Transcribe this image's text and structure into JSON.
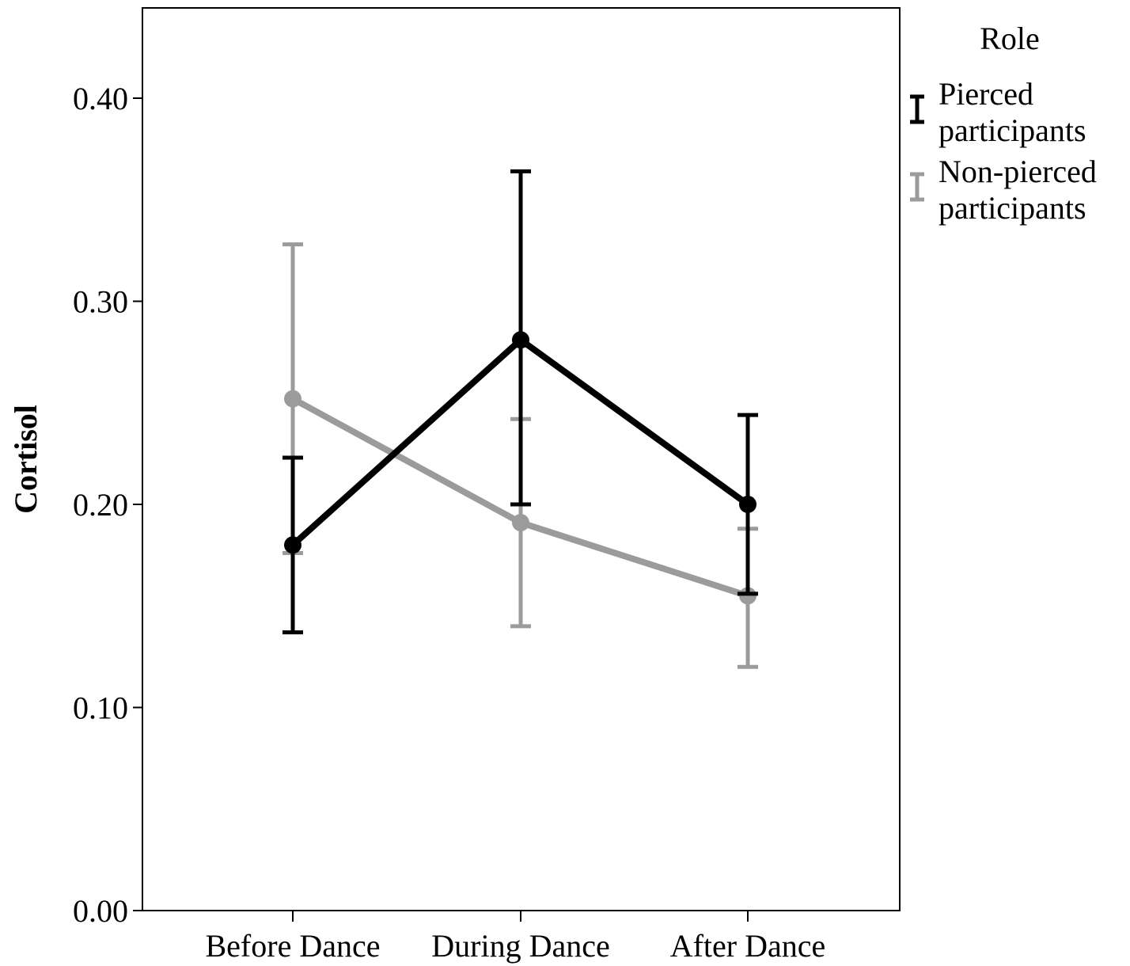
{
  "chart_data": {
    "type": "line",
    "title": "",
    "xlabel": "",
    "ylabel": "Cortisol",
    "categories": [
      "Before Dance",
      "During Dance",
      "After Dance"
    ],
    "ylim": [
      0.0,
      0.44
    ],
    "yticks": [
      "0.00",
      "0.10",
      "0.20",
      "0.30",
      "0.40"
    ],
    "ytick_values": [
      0.0,
      0.1,
      0.2,
      0.3,
      0.4
    ],
    "grid": false,
    "legend": {
      "title": "Role",
      "position": "right"
    },
    "series": [
      {
        "name": "Pierced participants",
        "name_lines": [
          "Pierced",
          "participants"
        ],
        "color": "#000000",
        "values": [
          0.18,
          0.281,
          0.2
        ],
        "err_low": [
          0.137,
          0.2,
          0.156
        ],
        "err_high": [
          0.223,
          0.364,
          0.244
        ]
      },
      {
        "name": "Non-pierced participants",
        "name_lines": [
          "Non-pierced",
          "participants"
        ],
        "color": "#9b9b9b",
        "values": [
          0.252,
          0.191,
          0.155
        ],
        "err_low": [
          0.176,
          0.14,
          0.12
        ],
        "err_high": [
          0.328,
          0.242,
          0.188
        ]
      }
    ]
  }
}
